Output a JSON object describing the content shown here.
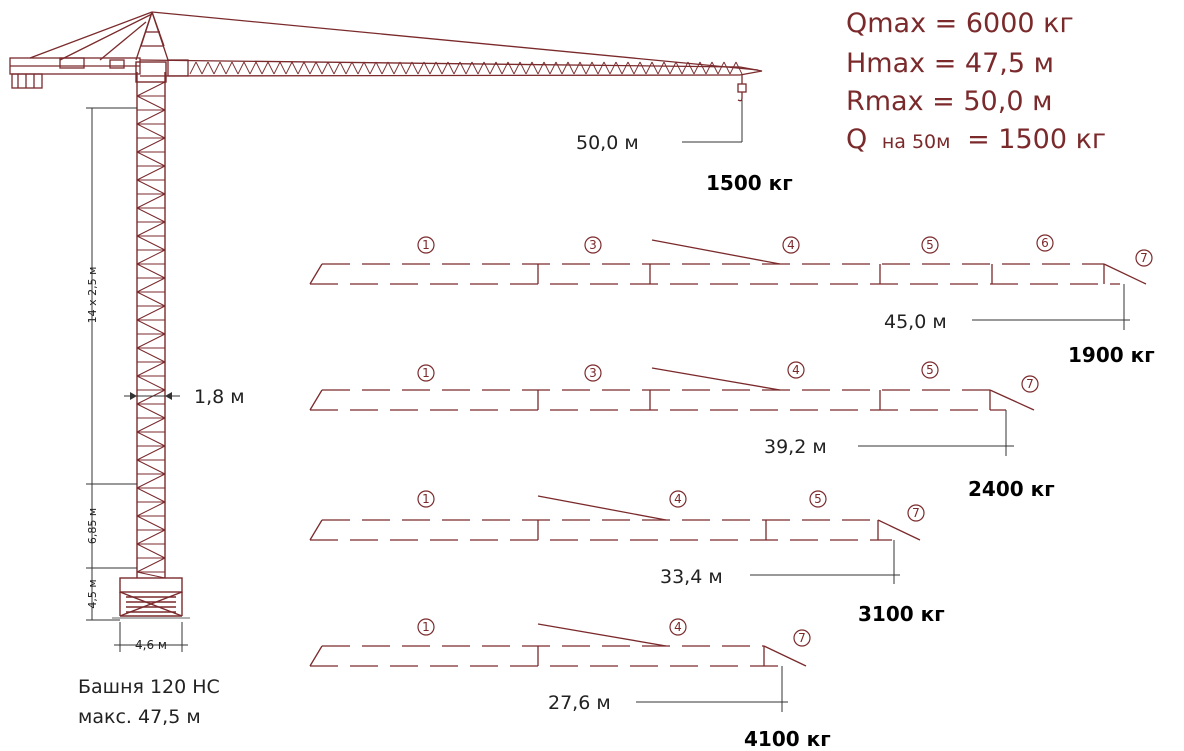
{
  "specs": {
    "q_max": "Qmax = 6000 кг",
    "h_max": "Hmax = 47,5 м",
    "r_max": "Rmax = 50,0 м",
    "q_at_prefix": "Q",
    "q_at_mid": "на 50м",
    "q_at_suffix": "= 1500 кг"
  },
  "main_jib": {
    "radius": "50,0 м",
    "load": "1500 кг"
  },
  "tower": {
    "mast_dim": "14 x 2,5 м",
    "width": "1,8 м",
    "section_dim": "6,85 м",
    "base_height": "4,5 м",
    "base_width": "4,6 м",
    "caption_line1": "Башня 120 НС",
    "caption_line2": "макс. 47,5 м"
  },
  "configs": [
    {
      "radius": "45,0 м",
      "load": "1900 кг",
      "labels": [
        "1",
        "3",
        "4",
        "5",
        "6",
        "7"
      ]
    },
    {
      "radius": "39,2 м",
      "load": "2400 кг",
      "labels": [
        "1",
        "3",
        "4",
        "5",
        "7"
      ]
    },
    {
      "radius": "33,4 м",
      "load": "3100 кг",
      "labels": [
        "1",
        "4",
        "5",
        "7"
      ]
    },
    {
      "radius": "27,6 м",
      "load": "4100 кг",
      "labels": [
        "1",
        "4",
        "7"
      ]
    }
  ],
  "colors": {
    "drawing": "#7b2a2c",
    "text": "#222222",
    "load": "#000000"
  }
}
